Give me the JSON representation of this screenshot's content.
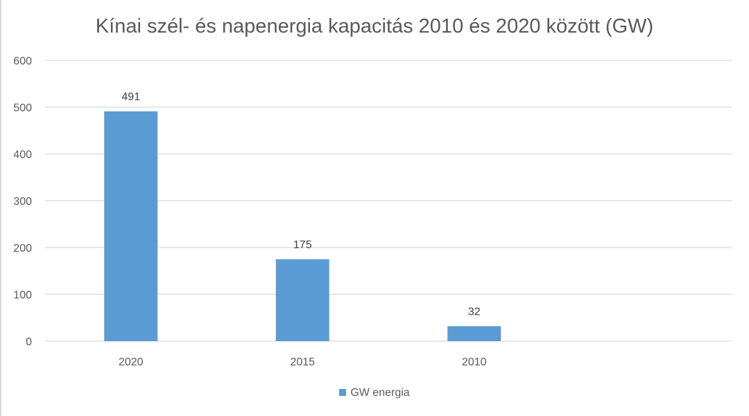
{
  "chart_data": {
    "type": "bar",
    "title": "Kínai szél- és napenergia kapacitás 2010 és 2020 között (GW)",
    "categories": [
      "2020",
      "2015",
      "2010"
    ],
    "series": [
      {
        "name": "GW energia",
        "values": [
          491,
          175,
          32
        ],
        "color": "#5B9BD5"
      }
    ],
    "ylim": [
      0,
      600
    ],
    "yticks": [
      0,
      100,
      200,
      300,
      400,
      500,
      600
    ],
    "grid": true,
    "data_labels": true,
    "legend": "bottom",
    "xlabel": "",
    "ylabel": ""
  }
}
